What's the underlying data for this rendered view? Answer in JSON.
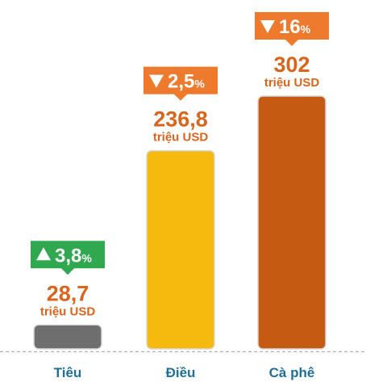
{
  "chart_data": {
    "type": "bar",
    "categories": [
      "Tiêu",
      "Điều",
      "Cà phê"
    ],
    "values": [
      28.7,
      236.8,
      302
    ],
    "value_labels": [
      "28,7",
      "236,8",
      "302"
    ],
    "unit": "triệu USD",
    "changes": [
      {
        "direction": "up",
        "label": "3,8",
        "suffix": "%"
      },
      {
        "direction": "down",
        "label": "2,5",
        "suffix": "%"
      },
      {
        "direction": "down",
        "label": "16",
        "suffix": "%"
      }
    ],
    "colors": {
      "bars": [
        "#6e6e6e",
        "#f6b90e",
        "#c55a12"
      ],
      "value_text": "#d9641c",
      "category_text": "#1f6f9a",
      "badge_up": "#2fa84f",
      "badge_down": "#ee7a2d",
      "baseline": "#b0b0b0"
    },
    "grid": false,
    "legend": "none"
  }
}
